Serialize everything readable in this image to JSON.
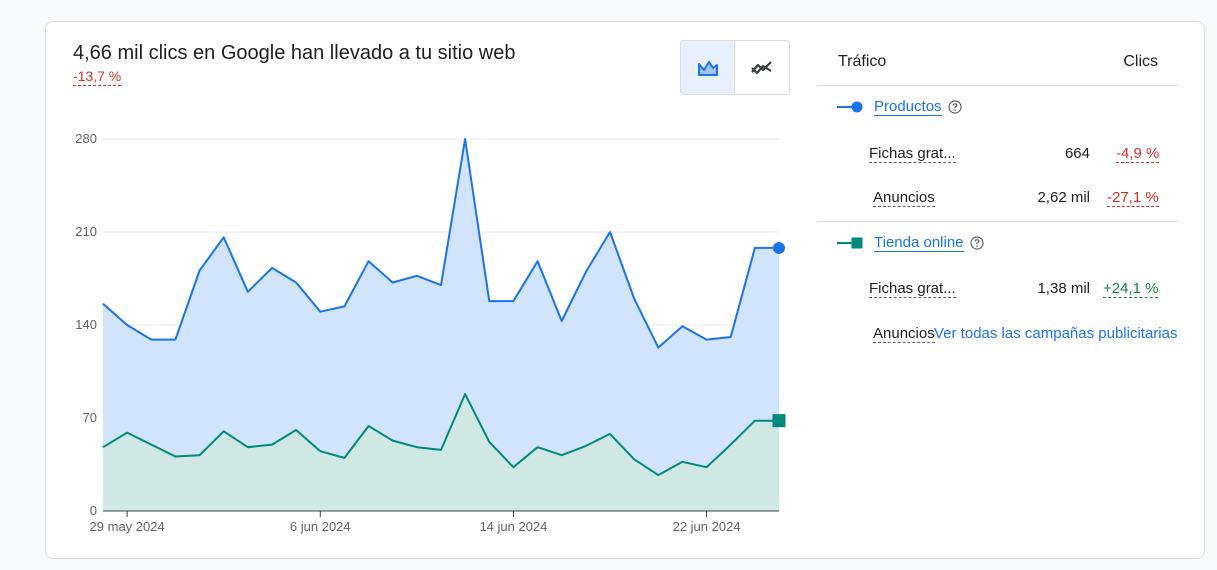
{
  "summary": {
    "headline": "4,66 mil clics en Google han llevado a tu sitio web",
    "change": "-13,7 %"
  },
  "toggle": {
    "options": [
      {
        "icon": "area-chart-icon",
        "active": true
      },
      {
        "icon": "line-chart-icon",
        "active": false
      }
    ]
  },
  "colors": {
    "productos": "#1a73e8",
    "productos_fill": "#d2e3fc",
    "tienda": "#00897b",
    "tienda_fill": "#cfe8e4",
    "negative": "#d93025",
    "positive": "#188038"
  },
  "chart_data": {
    "type": "area",
    "x": [
      "2024-05-28",
      "2024-05-29",
      "2024-05-30",
      "2024-05-31",
      "2024-06-01",
      "2024-06-02",
      "2024-06-03",
      "2024-06-04",
      "2024-06-05",
      "2024-06-06",
      "2024-06-07",
      "2024-06-08",
      "2024-06-09",
      "2024-06-10",
      "2024-06-11",
      "2024-06-12",
      "2024-06-13",
      "2024-06-14",
      "2024-06-15",
      "2024-06-16",
      "2024-06-17",
      "2024-06-18",
      "2024-06-19",
      "2024-06-20",
      "2024-06-21",
      "2024-06-22",
      "2024-06-23",
      "2024-06-24",
      "2024-06-25"
    ],
    "series": [
      {
        "name": "Productos",
        "values": [
          156,
          140,
          129,
          129,
          181,
          206,
          165,
          183,
          172,
          150,
          154,
          188,
          172,
          177,
          170,
          280,
          158,
          158,
          188,
          143,
          180,
          210,
          160,
          123,
          139,
          129,
          131,
          198,
          198
        ]
      },
      {
        "name": "Tienda online",
        "values": [
          48,
          59,
          50,
          41,
          42,
          60,
          48,
          50,
          61,
          45,
          40,
          64,
          53,
          48,
          46,
          88,
          52,
          33,
          48,
          42,
          49,
          58,
          39,
          27,
          37,
          33,
          50,
          68,
          68
        ]
      }
    ],
    "x_ticks": [
      "29 may 2024",
      "6 jun 2024",
      "14 jun 2024",
      "22 jun 2024"
    ],
    "y_ticks": [
      0,
      70,
      140,
      210,
      280
    ],
    "ylim": [
      0,
      280
    ],
    "grid": true
  },
  "table": {
    "col_traffic": "Tráfico",
    "col_clicks": "Clics",
    "groups": [
      {
        "name": "Productos",
        "rows": [
          {
            "label": "Fichas grat...",
            "value": "664",
            "change": "-4,9 %",
            "trend": "neg"
          },
          {
            "label": "Anuncios",
            "value": "2,62 mil",
            "change": "-27,1 %",
            "trend": "neg"
          }
        ]
      },
      {
        "name": "Tienda online",
        "rows": [
          {
            "label": "Fichas grat...",
            "value": "1,38 mil",
            "change": "+24,1 %",
            "trend": "pos"
          },
          {
            "label": "Anuncios",
            "value": "",
            "change": "",
            "trend": ""
          }
        ]
      }
    ],
    "all_campaigns_link": "Ver todas las campañas publicitarias"
  }
}
